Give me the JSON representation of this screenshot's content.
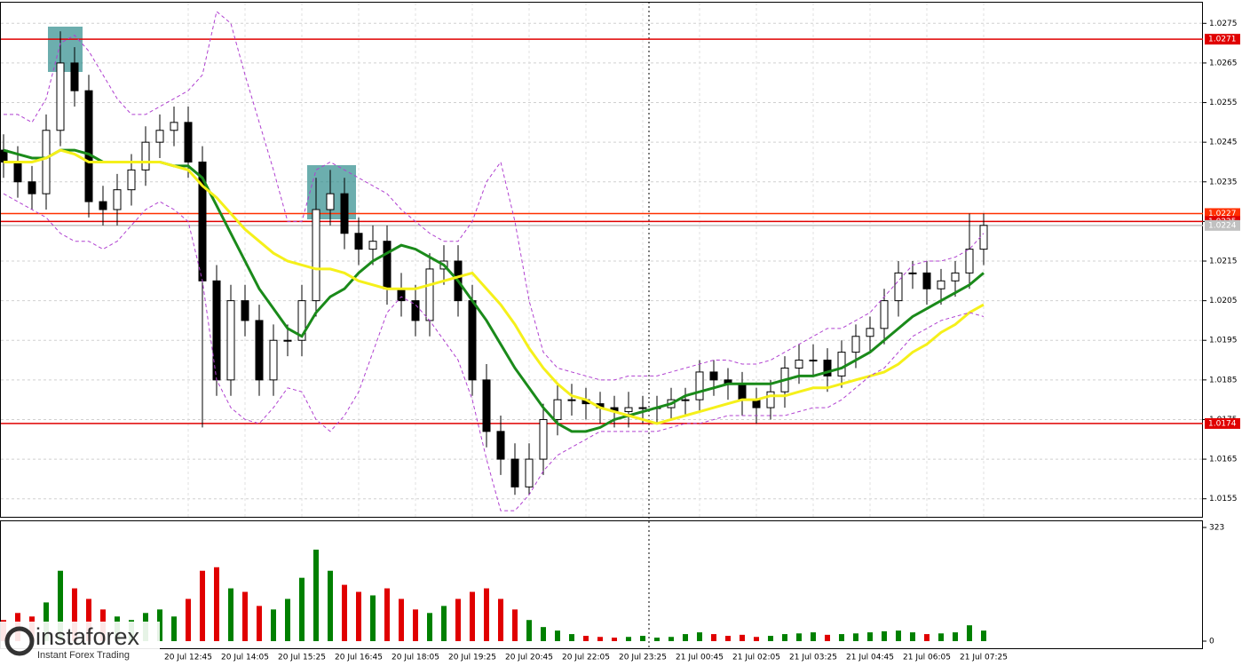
{
  "chart_data": {
    "type": "candlestick",
    "categories": [
      null,
      null,
      null,
      null,
      null,
      null,
      null,
      null,
      null,
      null,
      null,
      null,
      null,
      "20 Jul 12:45",
      null,
      null,
      null,
      "20 Jul 14:05",
      null,
      null,
      null,
      "20 Jul 15:25",
      null,
      null,
      null,
      "20 Jul 16:45",
      null,
      null,
      null,
      "20 Jul 18:05",
      null,
      null,
      null,
      "20 Jul 19:25",
      null,
      null,
      null,
      "20 Jul 20:45",
      null,
      null,
      null,
      "20 Jul 22:05",
      null,
      null,
      null,
      "20 Jul 23:25",
      null,
      null,
      null,
      "21 Jul 00:45",
      null,
      null,
      null,
      "21 Jul 02:05",
      null,
      null,
      null,
      "21 Jul 03:25",
      null,
      null,
      null,
      "21 Jul 04:45",
      null,
      null,
      null,
      "21 Jul 06:05",
      null,
      null,
      null,
      "21 Jul 07:25"
    ],
    "open": [
      1.0243,
      1.024,
      1.0235,
      1.0232,
      1.0248,
      1.0265,
      1.0258,
      1.023,
      1.0228,
      1.0233,
      1.0238,
      1.0245,
      1.0248,
      1.025,
      1.024,
      1.021,
      1.0185,
      1.0205,
      1.02,
      1.0185,
      1.0195,
      1.0195,
      1.0205,
      1.0228,
      1.0232,
      1.0222,
      1.0218,
      1.022,
      1.0208,
      1.0205,
      1.02,
      1.0213,
      1.0215,
      1.0205,
      1.0185,
      1.0172,
      1.0165,
      1.0158,
      1.0165,
      1.0175,
      1.018,
      1.018,
      1.0179,
      1.0178,
      1.0177,
      1.0178,
      1.0178,
      1.0178,
      1.018,
      1.018,
      1.0187,
      1.0185,
      1.0184,
      1.018,
      1.0178,
      1.0182,
      1.0188,
      1.019,
      1.019,
      1.0186,
      1.0192,
      1.0196,
      1.0198,
      1.0205,
      1.0212,
      1.0212,
      1.0208,
      1.021,
      1.0212,
      1.0218
    ],
    "high": [
      1.0247,
      1.0244,
      1.0239,
      1.0252,
      1.0273,
      1.0269,
      1.0262,
      1.0234,
      1.0237,
      1.0242,
      1.0249,
      1.0252,
      1.0254,
      1.0254,
      1.0244,
      1.0214,
      1.0209,
      1.0209,
      1.0204,
      1.0199,
      1.0199,
      1.0209,
      1.0236,
      1.0238,
      1.0236,
      1.0226,
      1.0224,
      1.0224,
      1.0212,
      1.0209,
      1.0217,
      1.0219,
      1.0219,
      1.0209,
      1.0189,
      1.0176,
      1.0169,
      1.0169,
      1.0179,
      1.0184,
      1.0184,
      1.0183,
      1.0182,
      1.0181,
      1.0182,
      1.0181,
      1.0181,
      1.0183,
      1.0183,
      1.019,
      1.019,
      1.0188,
      1.0187,
      1.0183,
      1.0185,
      1.0191,
      1.0194,
      1.0194,
      1.0193,
      1.0195,
      1.0199,
      1.0201,
      1.0208,
      1.0215,
      1.0215,
      1.0215,
      1.0213,
      1.0215,
      1.0227,
      1.0227
    ],
    "low": [
      1.0236,
      1.0231,
      1.0228,
      1.0228,
      1.0244,
      1.0254,
      1.0226,
      1.0224,
      1.0224,
      1.0229,
      1.0234,
      1.0241,
      1.0244,
      1.0236,
      1.0173,
      1.0181,
      1.0181,
      1.0196,
      1.0181,
      1.0181,
      1.0191,
      1.0191,
      1.0201,
      1.0224,
      1.0218,
      1.0214,
      1.0214,
      1.0204,
      1.0201,
      1.0196,
      1.0196,
      1.0209,
      1.0201,
      1.0181,
      1.0168,
      1.0161,
      1.0156,
      1.0156,
      1.0161,
      1.0171,
      1.0176,
      1.0175,
      1.0174,
      1.0173,
      1.0173,
      1.0174,
      1.0174,
      1.0175,
      1.0176,
      1.0177,
      1.0181,
      1.018,
      1.0176,
      1.0174,
      1.0175,
      1.0178,
      1.0184,
      1.0186,
      1.0182,
      1.0183,
      1.0188,
      1.0192,
      1.0194,
      1.0201,
      1.0208,
      1.0204,
      1.0204,
      1.0206,
      1.0208,
      1.0214
    ],
    "close": [
      1.024,
      1.0235,
      1.0232,
      1.0248,
      1.0265,
      1.0258,
      1.023,
      1.0228,
      1.0233,
      1.0238,
      1.0245,
      1.0248,
      1.025,
      1.024,
      1.021,
      1.0185,
      1.0205,
      1.02,
      1.0185,
      1.0195,
      1.0195,
      1.0205,
      1.0228,
      1.0232,
      1.0222,
      1.0218,
      1.022,
      1.0208,
      1.0205,
      1.02,
      1.0213,
      1.0215,
      1.0205,
      1.0185,
      1.0172,
      1.0165,
      1.0158,
      1.0165,
      1.0175,
      1.018,
      1.018,
      1.0179,
      1.0178,
      1.0177,
      1.0178,
      1.0178,
      1.0178,
      1.018,
      1.018,
      1.0187,
      1.0185,
      1.0184,
      1.018,
      1.0178,
      1.0182,
      1.0188,
      1.019,
      1.019,
      1.0186,
      1.0192,
      1.0196,
      1.0198,
      1.0205,
      1.0212,
      1.0212,
      1.0208,
      1.021,
      1.0212,
      1.0218,
      1.0224
    ],
    "volume": [
      60,
      80,
      70,
      110,
      200,
      150,
      120,
      90,
      70,
      60,
      80,
      90,
      70,
      120,
      200,
      210,
      150,
      140,
      100,
      90,
      120,
      180,
      260,
      200,
      160,
      140,
      130,
      150,
      120,
      90,
      80,
      100,
      120,
      140,
      150,
      120,
      90,
      60,
      40,
      30,
      20,
      15,
      12,
      10,
      12,
      15,
      10,
      12,
      20,
      25,
      20,
      15,
      18,
      12,
      15,
      20,
      22,
      25,
      18,
      20,
      22,
      25,
      28,
      30,
      25,
      20,
      22,
      25,
      45,
      30
    ],
    "lines": [
      {
        "color": "#1a8a1a",
        "values": [
          1.0243,
          1.0242,
          1.0241,
          1.0241,
          1.0243,
          1.0243,
          1.0242,
          1.024,
          1.024,
          1.024,
          1.024,
          1.024,
          1.0239,
          1.0239,
          1.0236,
          1.0229,
          1.0222,
          1.0215,
          1.0208,
          1.0203,
          1.0198,
          1.0196,
          1.0202,
          1.0206,
          1.0208,
          1.0212,
          1.0215,
          1.0217,
          1.0219,
          1.0218,
          1.0216,
          1.0214,
          1.021,
          1.0205,
          1.02,
          1.0194,
          1.0188,
          1.0183,
          1.0178,
          1.0174,
          1.0172,
          1.0172,
          1.0173,
          1.0175,
          1.0176,
          1.0177,
          1.0178,
          1.0179,
          1.0181,
          1.0182,
          1.0183,
          1.0184,
          1.0184,
          1.0184,
          1.0184,
          1.0185,
          1.0186,
          1.0186,
          1.0187,
          1.0188,
          1.019,
          1.0192,
          1.0195,
          1.0198,
          1.0201,
          1.0203,
          1.0205,
          1.0207,
          1.0209,
          1.0212
        ]
      },
      {
        "color": "#f5f01a",
        "values": [
          1.024,
          1.024,
          1.024,
          1.0241,
          1.0243,
          1.0242,
          1.024,
          1.024,
          1.024,
          1.024,
          1.024,
          1.024,
          1.0239,
          1.0238,
          1.0234,
          1.0231,
          1.0227,
          1.0223,
          1.022,
          1.0217,
          1.0215,
          1.0214,
          1.0213,
          1.0213,
          1.0212,
          1.021,
          1.0209,
          1.0208,
          1.0208,
          1.0208,
          1.0209,
          1.021,
          1.0211,
          1.0212,
          1.0208,
          1.0204,
          1.0199,
          1.0193,
          1.0188,
          1.0184,
          1.0181,
          1.018,
          1.0178,
          1.0177,
          1.0176,
          1.0175,
          1.0174,
          1.0175,
          1.0176,
          1.0177,
          1.0178,
          1.0179,
          1.018,
          1.018,
          1.0181,
          1.0181,
          1.0182,
          1.0183,
          1.0183,
          1.0184,
          1.0185,
          1.0186,
          1.0187,
          1.0189,
          1.0192,
          1.0194,
          1.0197,
          1.0199,
          1.0202,
          1.0204
        ]
      },
      {
        "color": "#b040d0",
        "dashed": true,
        "values": [
          1.0252,
          1.0252,
          1.025,
          1.0256,
          1.027,
          1.0272,
          1.0268,
          1.0262,
          1.0256,
          1.0252,
          1.0252,
          1.0254,
          1.0256,
          1.0258,
          1.0262,
          1.0278,
          1.0275,
          1.0262,
          1.025,
          1.0238,
          1.0225,
          1.0225,
          1.0238,
          1.024,
          1.0238,
          1.0236,
          1.0234,
          1.0232,
          1.0228,
          1.0225,
          1.0222,
          1.022,
          1.022,
          1.0225,
          1.0235,
          1.024,
          1.0225,
          1.0205,
          1.0192,
          1.0188,
          1.0187,
          1.0186,
          1.0185,
          1.0185,
          1.0186,
          1.0186,
          1.0186,
          1.0187,
          1.0188,
          1.0189,
          1.019,
          1.019,
          1.0189,
          1.0189,
          1.019,
          1.0192,
          1.0194,
          1.0196,
          1.0198,
          1.0198,
          1.02,
          1.0202,
          1.0206,
          1.021,
          1.0214,
          1.0215,
          1.0215,
          1.0216,
          1.0218,
          1.0222
        ]
      },
      {
        "color": "#b040d0",
        "dashed": true,
        "values": [
          1.0232,
          1.023,
          1.0228,
          1.0226,
          1.0222,
          1.022,
          1.022,
          1.0218,
          1.022,
          1.0224,
          1.0228,
          1.023,
          1.0228,
          1.0225,
          1.021,
          1.0185,
          1.0178,
          1.0175,
          1.0174,
          1.0178,
          1.0183,
          1.0182,
          1.0175,
          1.0172,
          1.0176,
          1.0182,
          1.0192,
          1.0202,
          1.0206,
          1.0204,
          1.02,
          1.0195,
          1.019,
          1.018,
          1.0165,
          1.0152,
          1.0152,
          1.0156,
          1.0162,
          1.0166,
          1.0168,
          1.017,
          1.0172,
          1.0172,
          1.0172,
          1.0172,
          1.0172,
          1.0173,
          1.0174,
          1.0174,
          1.0175,
          1.0176,
          1.0176,
          1.0176,
          1.0176,
          1.0176,
          1.0177,
          1.0178,
          1.0178,
          1.018,
          1.0183,
          1.0186,
          1.0188,
          1.0192,
          1.0196,
          1.0198,
          1.02,
          1.0201,
          1.0202,
          1.0201
        ]
      }
    ],
    "levels": [
      {
        "value": 1.0271,
        "color": "#e00000"
      },
      {
        "value": 1.0227,
        "color": "#ff3000"
      },
      {
        "value": 1.0225,
        "color": "#e00000"
      },
      {
        "value": 1.0224,
        "color": "#c0c0c0"
      },
      {
        "value": 1.0174,
        "color": "#e00000"
      }
    ],
    "ylim": [
      1.015,
      1.028
    ],
    "yticks": [
      1.0155,
      1.0165,
      1.0175,
      1.0185,
      1.0195,
      1.0205,
      1.0215,
      1.0225,
      1.0235,
      1.0245,
      1.0255,
      1.0265,
      1.0275
    ],
    "vlim": [
      0,
      323
    ],
    "vticks": [
      0,
      323
    ],
    "grid": true
  },
  "brand": {
    "name": "instaforex",
    "tagline": "Instant Forex Trading"
  }
}
